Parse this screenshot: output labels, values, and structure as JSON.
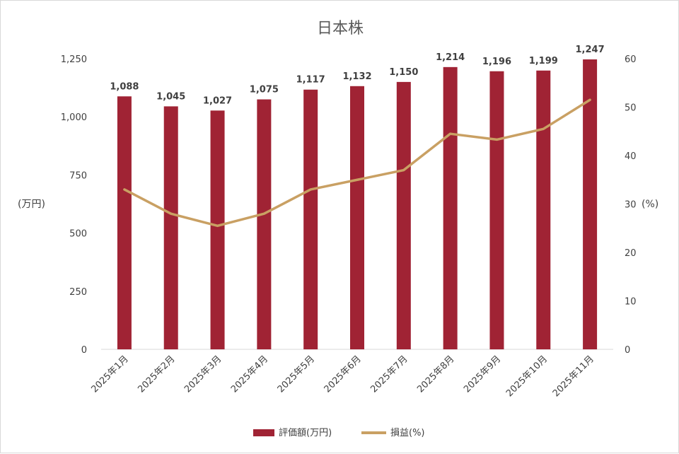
{
  "chart_data": {
    "type": "bar+line",
    "title": "日本株",
    "categories": [
      "2025年1月",
      "2025年2月",
      "2025年3月",
      "2025年4月",
      "2025年5月",
      "2025年6月",
      "2025年7月",
      "2025年8月",
      "2025年9月",
      "2025年10月",
      "2025年11月"
    ],
    "series": [
      {
        "name": "評価額(万円)",
        "type": "bar",
        "axis": "left",
        "color": "#a02334",
        "values": [
          1088,
          1045,
          1027,
          1075,
          1117,
          1132,
          1150,
          1214,
          1196,
          1199,
          1247
        ],
        "labels": [
          "1,088",
          "1,045",
          "1,027",
          "1,075",
          "1,117",
          "1,132",
          "1,150",
          "1,214",
          "1,196",
          "1,199",
          "1,247"
        ]
      },
      {
        "name": "損益(%)",
        "type": "line",
        "axis": "right",
        "color": "#c9a063",
        "values": [
          33,
          28,
          25.5,
          28,
          33,
          35,
          37,
          44.5,
          43.3,
          45.5,
          51.5
        ]
      }
    ],
    "ylabel_left": "(万円)",
    "ylabel_right": "(%)",
    "ylim_left": [
      0,
      1250
    ],
    "ylim_right": [
      0,
      60
    ],
    "yticks_left": [
      "0",
      "250",
      "500",
      "750",
      "1,000",
      "1,250"
    ],
    "yticks_right": [
      "0",
      "10",
      "20",
      "30",
      "40",
      "50",
      "60"
    ],
    "grid": false,
    "legend_position": "bottom"
  }
}
